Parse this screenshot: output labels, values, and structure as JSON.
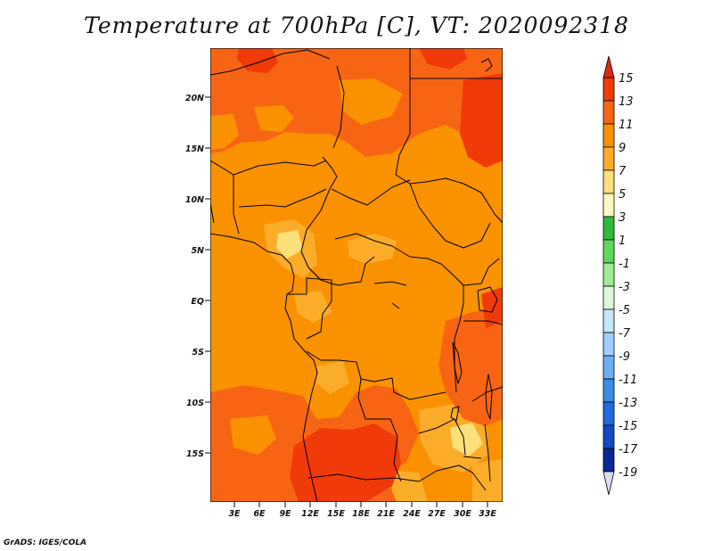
{
  "title": "Temperature at 700hPa [C], VT: 2020092318",
  "credit": "GrADS: IGES/COLA",
  "map": {
    "lat_labels": [
      "20N",
      "15N",
      "10N",
      "5N",
      "EQ",
      "5S",
      "10S",
      "15S"
    ],
    "lon_labels": [
      "3E",
      "6E",
      "9E",
      "12E",
      "15E",
      "18E",
      "21E",
      "24E",
      "27E",
      "30E",
      "33E"
    ]
  },
  "colorbar": {
    "labels": [
      "15",
      "13",
      "11",
      "9",
      "7",
      "5",
      "3",
      "1",
      "-1",
      "-3",
      "-5",
      "-7",
      "-9",
      "-11",
      "-13",
      "-15",
      "-17",
      "-19"
    ],
    "colors": {
      "above_15": "#d92a14",
      "c13_15": "#f03a0a",
      "c11_13": "#f76514",
      "c9_11": "#fa9200",
      "c7_9": "#fbad2a",
      "c5_7": "#fde07a",
      "c3_5": "#fef8c0",
      "c1_3": "#33b83e",
      "cm1_1": "#5fd75d",
      "cm3_m1": "#a0ec93",
      "cm5_m3": "#dcf8d8",
      "cm7_m5": "#c8e6fb",
      "cm9_m7": "#a1cffa",
      "cm11_m9": "#6fb0f3",
      "cm13_m11": "#3b8be8",
      "cm15_m13": "#1f6ce0",
      "cm17_m15": "#1449c3",
      "cm19_m17": "#0a2996",
      "below_m19": "#dcdcf5"
    }
  }
}
